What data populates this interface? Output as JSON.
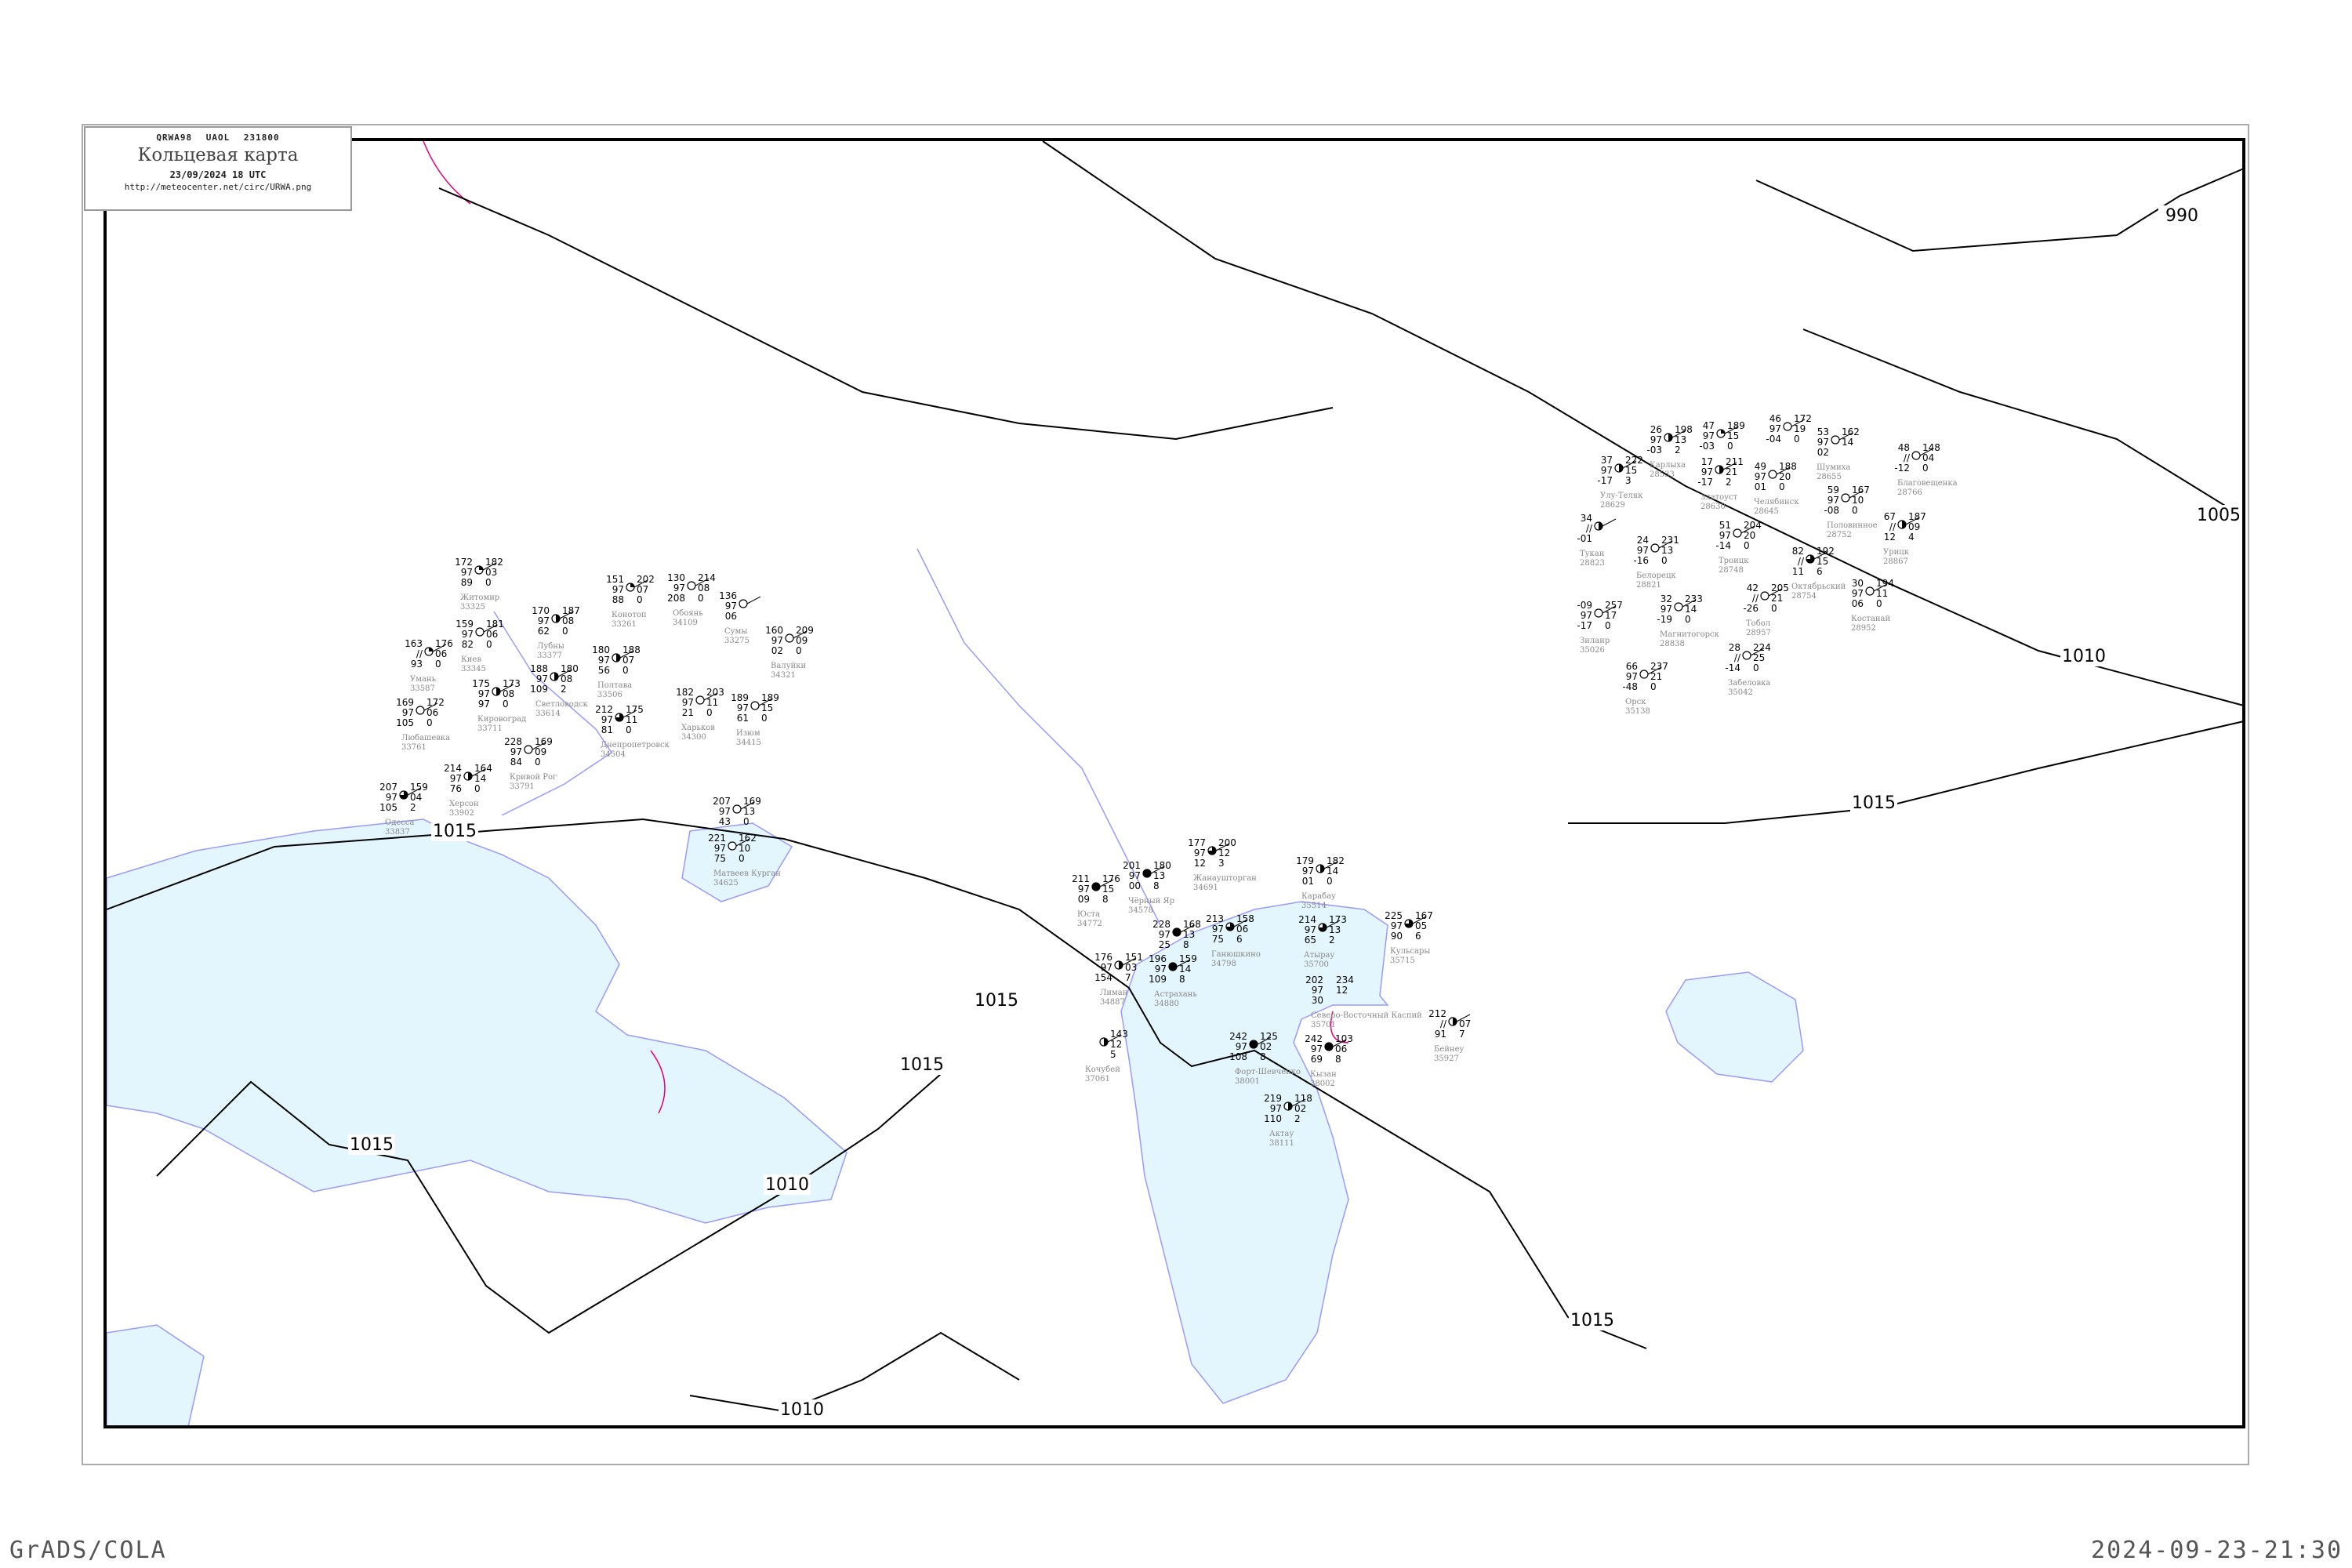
{
  "header": {
    "bulletin": "QRWA98   UAOL   231800",
    "title": "Кольцевая карта",
    "datetime": "23/09/2024 18 UTC",
    "url": "http://meteocenter.net/circ/URWA.png"
  },
  "footer": {
    "software": "GrADS/COLA",
    "generated": "2024-09-23-21:30"
  },
  "colors": {
    "water": "#e4f6fd",
    "coast": "#9999ff",
    "isobar": "#000000",
    "station_name": "#888888",
    "front": "#e0007a",
    "river": "#1e9be6"
  },
  "isobars": [
    {
      "label": "990"
    },
    {
      "label": "1005"
    },
    {
      "label": "1010"
    },
    {
      "label": "1015"
    },
    {
      "label": "1015"
    },
    {
      "label": "1015"
    },
    {
      "label": "1015"
    },
    {
      "label": "1015"
    },
    {
      "label": "1015"
    },
    {
      "label": "1010"
    },
    {
      "label": "1010"
    }
  ],
  "stations": [
    {
      "name": "Житомир",
      "id": "33325",
      "l": [
        "172",
        "97",
        "89"
      ],
      "r": [
        "182",
        "03",
        "0"
      ],
      "cover": 0.25
    },
    {
      "name": "Киев",
      "id": "33345",
      "l": [
        "159",
        "97",
        "82"
      ],
      "r": [
        "181",
        "06",
        "0"
      ],
      "cover": 0
    },
    {
      "name": "Лубны",
      "id": "33377",
      "l": [
        "170",
        "97",
        "62"
      ],
      "r": [
        "187",
        "08",
        "0"
      ],
      "cover": 0.5
    },
    {
      "name": "Умань",
      "id": "33587",
      "l": [
        "163",
        "//",
        "93"
      ],
      "r": [
        "176",
        "06",
        "0"
      ],
      "cover": 0.25
    },
    {
      "name": "Светловодск",
      "id": "33614",
      "l": [
        "188",
        "97",
        "109"
      ],
      "r": [
        "180",
        "08",
        "2"
      ],
      "cover": 0.5
    },
    {
      "name": "Полтава",
      "id": "33506",
      "l": [
        "180",
        "97",
        "56"
      ],
      "r": [
        "188",
        "07",
        "0"
      ],
      "cover": 0.5
    },
    {
      "name": "Кировоград",
      "id": "33711",
      "l": [
        "175",
        "97",
        "97"
      ],
      "r": [
        "173",
        "08",
        "0"
      ],
      "cover": 0.5
    },
    {
      "name": "Любашевка",
      "id": "33761",
      "l": [
        "169",
        "97",
        "105"
      ],
      "r": [
        "172",
        "06",
        "0"
      ],
      "cover": 0
    },
    {
      "name": "Кривой Рог",
      "id": "33791",
      "l": [
        "228",
        "97",
        "84"
      ],
      "r": [
        "169",
        "09",
        "0"
      ],
      "cover": 0
    },
    {
      "name": "Днепропетровск",
      "id": "34504",
      "l": [
        "212",
        "97",
        "81"
      ],
      "r": [
        "175",
        "11",
        "0"
      ],
      "cover": 0.75
    },
    {
      "name": "Харьков",
      "id": "34300",
      "l": [
        "182",
        "97",
        "21"
      ],
      "r": [
        "203",
        "11",
        "0"
      ],
      "cover": 0
    },
    {
      "name": "Изюм",
      "id": "34415",
      "l": [
        "189",
        "97",
        "61"
      ],
      "r": [
        "189",
        "15",
        "0"
      ],
      "cover": 0
    },
    {
      "name": "Конотоп",
      "id": "33261",
      "l": [
        "151",
        "97",
        "88"
      ],
      "r": [
        "202",
        "07",
        "0"
      ],
      "cover": 0.25
    },
    {
      "name": "Обоянь",
      "id": "34109",
      "l": [
        "130",
        "97",
        "208"
      ],
      "r": [
        "214",
        "08",
        "0"
      ],
      "cover": 0
    },
    {
      "name": "Сумы",
      "id": "33275",
      "l": [
        "136",
        "97",
        "06"
      ],
      "r": [
        "",
        "",
        ""
      ],
      "cover": 0
    },
    {
      "name": "Валуйки",
      "id": "34321",
      "l": [
        "160",
        "97",
        "02"
      ],
      "r": [
        "209",
        "09",
        "0"
      ],
      "cover": 0
    },
    {
      "name": "Одесса",
      "id": "33837",
      "l": [
        "207",
        "97",
        "105"
      ],
      "r": [
        "159",
        "04",
        "2"
      ],
      "cover": 0.75
    },
    {
      "name": "Херсон",
      "id": "33902",
      "l": [
        "214",
        "97",
        "76"
      ],
      "r": [
        "164",
        "14",
        "0"
      ],
      "cover": 0.5
    },
    {
      "name": "",
      "id": "",
      "l": [
        "207",
        "97",
        "43"
      ],
      "r": [
        "169",
        "13",
        "0"
      ],
      "cover": 0
    },
    {
      "name": "Матвеев Курган",
      "id": "34625",
      "l": [
        "221",
        "97",
        "75"
      ],
      "r": [
        "162",
        "10",
        "0"
      ],
      "cover": 0
    },
    {
      "name": "Карлыха",
      "id": "28533",
      "l": [
        "26",
        "97",
        "-03"
      ],
      "r": [
        "198",
        "13",
        "2"
      ],
      "cover": 0.5
    },
    {
      "name": "",
      "id": "",
      "l": [
        "47",
        "97",
        "-03"
      ],
      "r": [
        "189",
        "15",
        "0"
      ],
      "cover": 0.25
    },
    {
      "name": "Улу-Теляк",
      "id": "28629",
      "l": [
        "37",
        "97",
        "-17"
      ],
      "r": [
        "222",
        "15",
        "3"
      ],
      "cover": 0.5
    },
    {
      "name": "Златоуст",
      "id": "28630",
      "l": [
        "17",
        "97",
        "-17"
      ],
      "r": [
        "211",
        "21",
        "2"
      ],
      "cover": 0.5
    },
    {
      "name": "Челябинск",
      "id": "28645",
      "l": [
        "49",
        "97",
        "01"
      ],
      "r": [
        "188",
        "20",
        "0"
      ],
      "cover": 0
    },
    {
      "name": "Троицк",
      "id": "28748",
      "l": [
        "51",
        "97",
        "-14"
      ],
      "r": [
        "204",
        "20",
        "0"
      ],
      "cover": 0
    },
    {
      "name": "",
      "id": "",
      "l": [
        "46",
        "97",
        "-04"
      ],
      "r": [
        "172",
        "19",
        "0"
      ],
      "cover": 0
    },
    {
      "name": "Шумиха",
      "id": "28655",
      "l": [
        "53",
        "97",
        "02"
      ],
      "r": [
        "162",
        "14",
        ""
      ],
      "cover": 0
    },
    {
      "name": "Половинное",
      "id": "28752",
      "l": [
        "59",
        "97",
        "-08"
      ],
      "r": [
        "167",
        "10",
        "0"
      ],
      "cover": 0
    },
    {
      "name": "Благовещенка",
      "id": "28766",
      "l": [
        "48",
        "//",
        "-12"
      ],
      "r": [
        "148",
        "04",
        "0"
      ],
      "cover": 0
    },
    {
      "name": "Октябрьский",
      "id": "28754",
      "l": [
        "82",
        "//",
        "11"
      ],
      "r": [
        "192",
        "15",
        "6"
      ],
      "cover": 0.75
    },
    {
      "name": "Урицк",
      "id": "28867",
      "l": [
        "67",
        "//",
        "12"
      ],
      "r": [
        "187",
        "09",
        "4"
      ],
      "cover": 0.5
    },
    {
      "name": "Костанай",
      "id": "28952",
      "l": [
        "30",
        "97",
        "06"
      ],
      "r": [
        "194",
        "11",
        "0"
      ],
      "cover": 0
    },
    {
      "name": "Тобол",
      "id": "28957",
      "l": [
        "42",
        "//",
        "-26"
      ],
      "r": [
        "205",
        "21",
        "0"
      ],
      "cover": 0
    },
    {
      "name": "Белорецк",
      "id": "28821",
      "l": [
        "24",
        "97",
        "-16"
      ],
      "r": [
        "231",
        "13",
        "0"
      ],
      "cover": 0
    },
    {
      "name": "Магнитогорск",
      "id": "28838",
      "l": [
        "32",
        "97",
        "-19"
      ],
      "r": [
        "233",
        "14",
        "0"
      ],
      "cover": 0
    },
    {
      "name": "Забеловка",
      "id": "35042",
      "l": [
        "28",
        "//",
        "-14"
      ],
      "r": [
        "224",
        "25",
        "0"
      ],
      "cover": 0
    },
    {
      "name": "Зилаир",
      "id": "35026",
      "l": [
        "-09",
        "97",
        "-17"
      ],
      "r": [
        "257",
        "17",
        "0"
      ],
      "cover": 0
    },
    {
      "name": "Орск",
      "id": "35138",
      "l": [
        "66",
        "97",
        "-48"
      ],
      "r": [
        "237",
        "21",
        "0"
      ],
      "cover": 0
    },
    {
      "name": "Тукан",
      "id": "28823",
      "l": [
        "34",
        "//",
        "-01"
      ],
      "r": [
        "",
        "",
        ""
      ],
      "cover": 0.5
    },
    {
      "name": "Жанаушторган",
      "id": "34691",
      "l": [
        "177",
        "97",
        "12"
      ],
      "r": [
        "200",
        "12",
        "3"
      ],
      "cover": 0.75
    },
    {
      "name": "Чёрный Яр",
      "id": "34578",
      "l": [
        "201",
        "97",
        "00"
      ],
      "r": [
        "180",
        "13",
        "8"
      ],
      "cover": 1
    },
    {
      "name": "Юста",
      "id": "34772",
      "l": [
        "211",
        "97",
        "09"
      ],
      "r": [
        "176",
        "15",
        "8"
      ],
      "cover": 1
    },
    {
      "name": "",
      "id": "",
      "l": [
        "228",
        "97",
        "25"
      ],
      "r": [
        "168",
        "13",
        "8"
      ],
      "cover": 1
    },
    {
      "name": "Астрахань",
      "id": "34880",
      "l": [
        "196",
        "97",
        "109"
      ],
      "r": [
        "159",
        "14",
        "8"
      ],
      "cover": 1
    },
    {
      "name": "Лиман",
      "id": "34887",
      "l": [
        "176",
        "97",
        "154"
      ],
      "r": [
        "151",
        "03",
        "7"
      ],
      "cover": 0.5
    },
    {
      "name": "Ганюшкино",
      "id": "34798",
      "l": [
        "213",
        "97",
        "75"
      ],
      "r": [
        "158",
        "06",
        "6"
      ],
      "cover": 0.75
    },
    {
      "name": "Карабау",
      "id": "35514",
      "l": [
        "179",
        "97",
        "01"
      ],
      "r": [
        "182",
        "14",
        "0"
      ],
      "cover": 0.5
    },
    {
      "name": "Атырау",
      "id": "35700",
      "l": [
        "214",
        "97",
        "65"
      ],
      "r": [
        "173",
        "13",
        "2"
      ],
      "cover": 0.75
    },
    {
      "name": "Кульсары",
      "id": "35715",
      "l": [
        "225",
        "97",
        "90"
      ],
      "r": [
        "167",
        "05",
        "6"
      ],
      "cover": 0.75
    },
    {
      "name": "Северо-Восточный Каспий",
      "id": "35701",
      "l": [
        "202",
        "97",
        "30"
      ],
      "r": [
        "234",
        "12",
        ""
      ],
      "cover": null
    },
    {
      "name": "Форт-Шевченко",
      "id": "38001",
      "l": [
        "242",
        "97",
        "108"
      ],
      "r": [
        "125",
        "02",
        "8"
      ],
      "cover": 1
    },
    {
      "name": "Кызан",
      "id": "38002",
      "l": [
        "242",
        "97",
        "69"
      ],
      "r": [
        "103",
        "06",
        "8"
      ],
      "cover": 1
    },
    {
      "name": "Актау",
      "id": "38111",
      "l": [
        "219",
        "97",
        "110"
      ],
      "r": [
        "118",
        "02",
        "2"
      ],
      "cover": 0.5
    },
    {
      "name": "Бейнеу",
      "id": "35927",
      "l": [
        "212",
        "//",
        "91"
      ],
      "r": [
        "",
        "07",
        "7"
      ],
      "cover": 0.5
    },
    {
      "name": "Кочубей",
      "id": "37061",
      "l": [
        "",
        "",
        ""
      ],
      "r": [
        "143",
        "12",
        "5"
      ],
      "cover": 0.5
    }
  ]
}
